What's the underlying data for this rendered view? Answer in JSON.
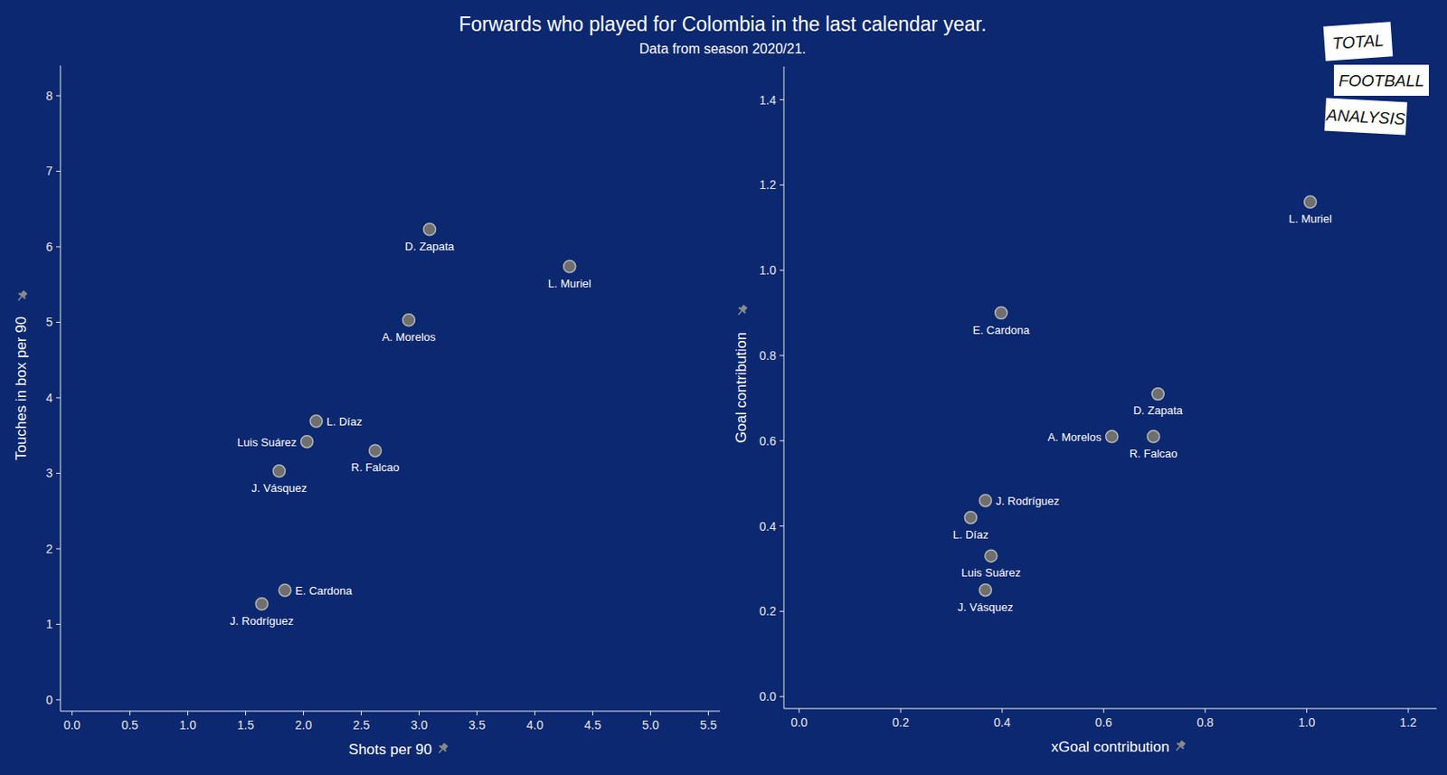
{
  "chart_data": [
    {
      "type": "scatter",
      "title": "Forwards who played for Colombia in the last calendar year.",
      "subtitle": "Data from season 2020/21.",
      "annotations": [
        "TOTAL",
        "FOOTBALL",
        "ANALYSIS"
      ],
      "x_label": "Shots per 90",
      "y_label": "Touches in box per 90",
      "labels": [
        "D. Zapata",
        "L. Muriel",
        "A. Morelos",
        "L. Díaz",
        "Luis Suárez",
        "R. Falcao",
        "J. Vásquez",
        "E. Cardona",
        "J. Rodríguez"
      ],
      "x": [
        3.09,
        4.3,
        2.91,
        2.11,
        2.03,
        2.62,
        1.79,
        1.84,
        1.64
      ],
      "values": [
        6.23,
        5.74,
        5.03,
        3.69,
        3.42,
        3.3,
        3.03,
        1.45,
        1.27
      ],
      "color": "#6f6f6f",
      "marker": "circle",
      "grid": false,
      "xlim": [
        -0.1,
        5.6
      ],
      "ylim": [
        -0.15,
        8.4
      ],
      "xticks": [
        {
          "value": 0,
          "label": "0.0"
        },
        0.5,
        {
          "value": 1,
          "label": "1.0"
        },
        1.5,
        {
          "value": 2,
          "label": "2.0"
        },
        2.5,
        {
          "value": 3,
          "label": "3.0"
        },
        3.5,
        {
          "value": 4,
          "label": "4.0"
        },
        4.5,
        {
          "value": 5,
          "label": "5.0"
        },
        5.5
      ],
      "yticks": [
        0,
        1,
        2,
        3,
        4,
        5,
        6,
        7,
        8
      ]
    },
    {
      "type": "scatter",
      "x_label": "xGoal contribution",
      "y_label": "Goal contribution",
      "labels": [
        "L. Muriel",
        "E. Cardona",
        "D. Zapata",
        "A. Morelos",
        "R. Falcao",
        "J. Rodríguez",
        "L. Díaz",
        "Luis Suárez",
        "J. Vásquez"
      ],
      "x": [
        1.007,
        0.398,
        0.707,
        0.616,
        0.698,
        0.367,
        0.338,
        0.378,
        0.367
      ],
      "values": [
        1.16,
        0.9,
        0.71,
        0.61,
        0.61,
        0.46,
        0.42,
        0.33,
        0.25
      ],
      "color": "#6f6f6f",
      "marker": "circle",
      "grid": false,
      "xlim": [
        -0.03,
        1.256
      ],
      "ylim": [
        -0.028,
        1.478
      ],
      "xticks": [
        {
          "value": 0,
          "label": "0.0"
        },
        0.2,
        0.4,
        0.6,
        0.8,
        {
          "value": 1,
          "label": "1.0"
        },
        1.2
      ],
      "yticks": [
        {
          "value": 0,
          "label": "0.0"
        },
        0.2,
        0.4,
        0.6,
        0.8,
        {
          "value": 1,
          "label": "1.0"
        },
        1.2,
        1.4
      ]
    }
  ]
}
